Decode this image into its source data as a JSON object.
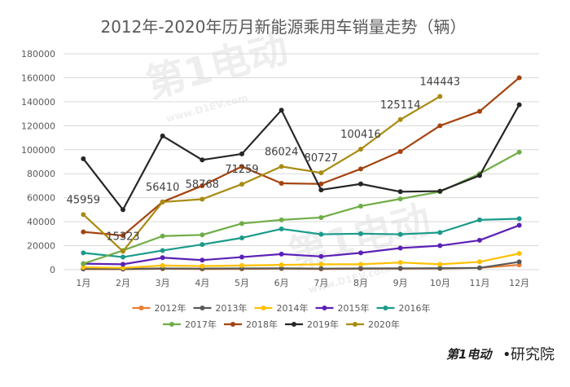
{
  "chart_data": {
    "type": "line",
    "title": "2012年-2020年历月新能源乘用车销量走势（辆）",
    "categories": [
      "1月",
      "2月",
      "3月",
      "4月",
      "5月",
      "6月",
      "7月",
      "8月",
      "9月",
      "10月",
      "11月",
      "12月"
    ],
    "ylim": [
      0,
      180000
    ],
    "yticks": [
      "0",
      "20000",
      "40000",
      "60000",
      "80000",
      "100000",
      "120000",
      "140000",
      "160000",
      "180000"
    ],
    "grid": true,
    "legend_position": "bottom",
    "series": [
      {
        "name": "2012年",
        "color": "#ED7D31",
        "values": [
          500,
          400,
          800,
          600,
          700,
          900,
          600,
          800,
          900,
          1000,
          1500,
          4000
        ]
      },
      {
        "name": "2013年",
        "color": "#595959",
        "values": [
          800,
          600,
          1000,
          900,
          1000,
          1100,
          900,
          1000,
          1100,
          1200,
          1500,
          6500
        ]
      },
      {
        "name": "2014年",
        "color": "#FFC000",
        "values": [
          2000,
          1500,
          3500,
          3000,
          3500,
          4000,
          4500,
          4500,
          6000,
          4500,
          6500,
          13500
        ]
      },
      {
        "name": "2015年",
        "color": "#5B21B6",
        "values": [
          5000,
          4500,
          10000,
          8000,
          10500,
          13000,
          11000,
          14000,
          18000,
          20000,
          24500,
          37000
        ]
      },
      {
        "name": "2016年",
        "color": "#1A9B8A",
        "values": [
          14000,
          10500,
          16000,
          21000,
          26500,
          34000,
          29500,
          30000,
          29500,
          31000,
          41500,
          42500
        ]
      },
      {
        "name": "2017年",
        "color": "#70AD47",
        "values": [
          5000,
          16000,
          28000,
          29000,
          38500,
          41500,
          43500,
          53000,
          59000,
          65000,
          80000,
          98000
        ]
      },
      {
        "name": "2018年",
        "color": "#A5430F",
        "values": [
          31500,
          28500,
          56500,
          70000,
          86000,
          72000,
          71500,
          84000,
          98500,
          120000,
          132000,
          160000
        ]
      },
      {
        "name": "2019年",
        "color": "#262626",
        "values": [
          92500,
          50000,
          111500,
          91500,
          96500,
          133000,
          66500,
          71500,
          65000,
          65500,
          78500,
          137500
        ]
      },
      {
        "name": "2020年",
        "color": "#A98B12",
        "values": [
          45959,
          15323,
          56410,
          58768,
          71259,
          86024,
          80727,
          100416,
          125114,
          144443,
          null,
          null
        ]
      }
    ],
    "annotations": [
      {
        "text": "45959",
        "category": "1月",
        "value": 45959
      },
      {
        "text": "15323",
        "category": "2月",
        "value": 15323
      },
      {
        "text": "56410",
        "category": "3月",
        "value": 56410
      },
      {
        "text": "58768",
        "category": "4月",
        "value": 58768
      },
      {
        "text": "71259",
        "category": "5月",
        "value": 71259
      },
      {
        "text": "86024",
        "category": "6月",
        "value": 86024
      },
      {
        "text": "80727",
        "category": "7月",
        "value": 80727
      },
      {
        "text": "100416",
        "category": "8月",
        "value": 100416
      },
      {
        "text": "125114",
        "category": "9月",
        "value": 125114
      },
      {
        "text": "144443",
        "category": "10月",
        "value": 144443
      }
    ]
  },
  "watermark": {
    "logo_text": "第1电动",
    "url_text": "www.D1EV.com"
  },
  "footer": {
    "logo_text": "第1电动",
    "dot": "•",
    "text": "研究院"
  }
}
